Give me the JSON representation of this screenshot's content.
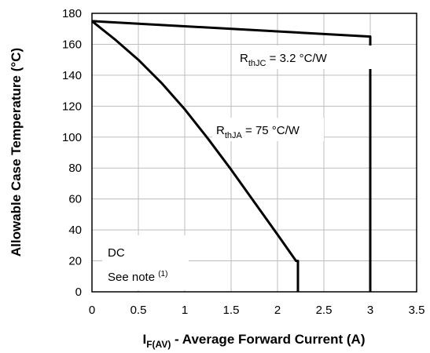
{
  "chart_data": {
    "type": "line",
    "ylabel": "Allowable Case Temperature (°C)",
    "xlabel": {
      "main": "I",
      "sub": "F(AV)",
      "rest": " - Average Forward Current (A)"
    },
    "xlim": [
      0,
      3.5
    ],
    "ylim": [
      0,
      180
    ],
    "x_ticks": [
      "0",
      "0.5",
      "1",
      "1.5",
      "2",
      "2.5",
      "3",
      "3.5"
    ],
    "y_ticks": [
      "0",
      "20",
      "40",
      "60",
      "80",
      "100",
      "120",
      "140",
      "160",
      "180"
    ],
    "grid": true,
    "series": [
      {
        "name": "RthJC = 3.2 °C/W",
        "x": [
          0,
          3.0,
          3.0
        ],
        "y": [
          175,
          165,
          0
        ]
      },
      {
        "name": "RthJA = 75 °C/W",
        "x": [
          0,
          0.25,
          0.5,
          0.75,
          1.0,
          1.25,
          1.5,
          1.75,
          2.0,
          2.2,
          2.22,
          2.22
        ],
        "y": [
          175,
          163,
          150,
          135,
          118,
          99,
          79,
          58,
          37,
          20,
          20,
          0
        ]
      }
    ],
    "annotations": {
      "rthjc": {
        "main": "R",
        "sub": "thJC",
        "rest": " = 3.2 °C/W"
      },
      "rthja": {
        "main": "R",
        "sub": "thJA",
        "rest": " = 75 °C/W"
      },
      "dc": "DC",
      "note": {
        "text": "See note ",
        "sup": "(1)"
      }
    }
  }
}
